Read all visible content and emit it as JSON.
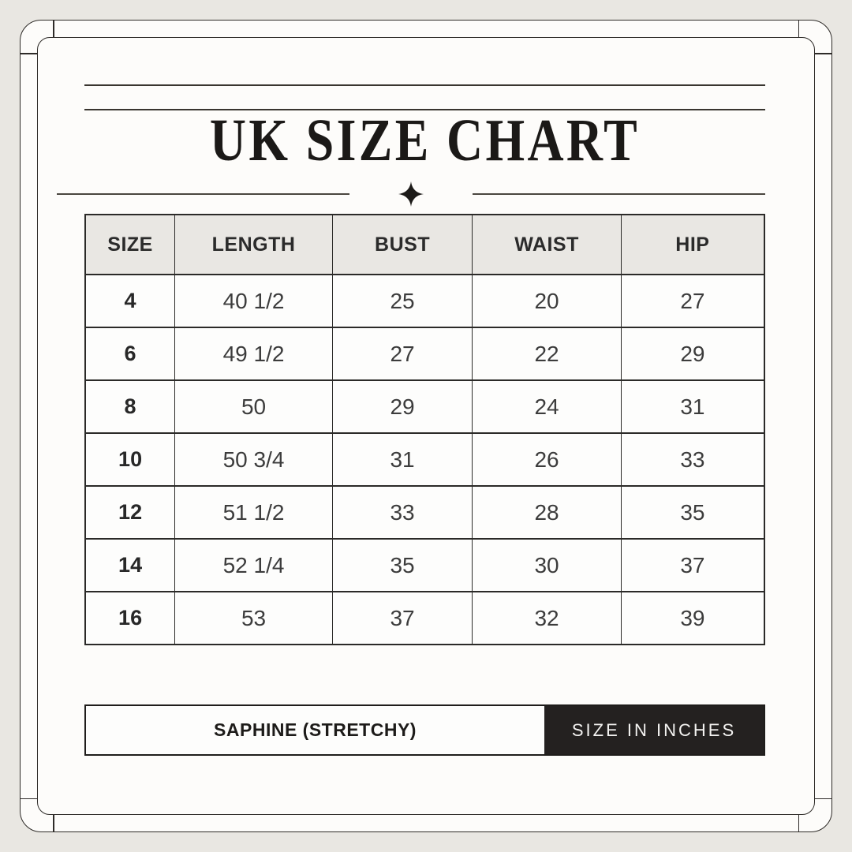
{
  "chart_data": {
    "type": "table",
    "title": "UK SIZE CHART",
    "columns": [
      "SIZE",
      "LENGTH",
      "BUST",
      "WAIST",
      "HIP"
    ],
    "rows": [
      [
        "4",
        "40 1/2",
        "25",
        "20",
        "27"
      ],
      [
        "6",
        "49 1/2",
        "27",
        "22",
        "29"
      ],
      [
        "8",
        "50",
        "29",
        "24",
        "31"
      ],
      [
        "10",
        "50 3/4",
        "31",
        "26",
        "33"
      ],
      [
        "12",
        "51 1/2",
        "33",
        "28",
        "35"
      ],
      [
        "14",
        "52 1/4",
        "35",
        "30",
        "37"
      ],
      [
        "16",
        "53",
        "37",
        "32",
        "39"
      ]
    ]
  },
  "footer": {
    "fabric_label": "SAPHINE (STRETCHY)",
    "units_label": "SIZE IN INCHES"
  },
  "decor": {
    "sparkle_icon": "four-pointed-star"
  },
  "colors": {
    "page_background": "#e9e7e2",
    "panel_background": "#fdfcfa",
    "frame_line": "#2e2b28",
    "header_cell_background": "#e9e7e3",
    "badge_background": "#242120",
    "badge_text": "#f4f3f1",
    "text_primary": "#2b2b2b"
  }
}
